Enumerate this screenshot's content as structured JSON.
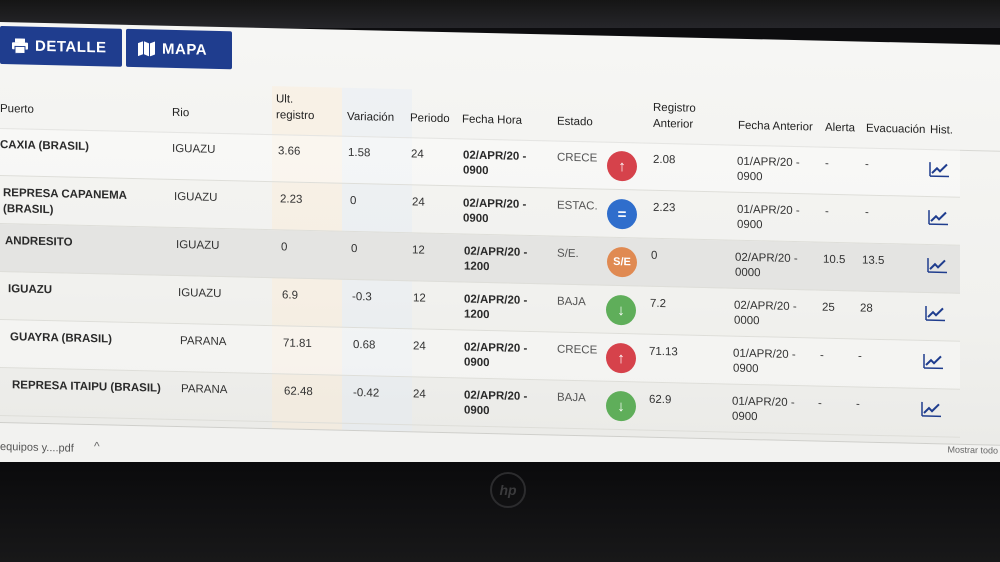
{
  "toolbar": {
    "detalle_label": "DETALLE",
    "mapa_label": "MAPA"
  },
  "columns": {
    "puerto": "Puerto",
    "rio": "Rio",
    "ult_registro_1": "Ult.",
    "ult_registro_2": "registro",
    "variacion": "Variación",
    "periodo": "Periodo",
    "fecha_hora": "Fecha Hora",
    "estado": "Estado",
    "registro_anterior_1": "Registro",
    "registro_anterior_2": "Anterior",
    "fecha_anterior": "Fecha Anterior",
    "alerta": "Alerta",
    "evacuacion": "Evacuación",
    "hist": "Hist."
  },
  "rows": [
    {
      "puerto_1": "CAXIA (BRASIL)",
      "puerto_2": "",
      "rio": "IGUAZU",
      "ult": "3.66",
      "variacion": "1.58",
      "periodo": "24",
      "fecha_1": "02/APR/20 -",
      "fecha_2": "0900",
      "estado": "CRECE",
      "estado_icon": "↑",
      "estado_icon_name": "arrow-up-icon",
      "registro_anterior": "2.08",
      "fecha_ant_1": "01/APR/20 -",
      "fecha_ant_2": "0900",
      "alerta": "-",
      "evacuacion": "-"
    },
    {
      "puerto_1": "REPRESA CAPANEMA",
      "puerto_2": "(BRASIL)",
      "rio": "IGUAZU",
      "ult": "2.23",
      "variacion": "0",
      "periodo": "24",
      "fecha_1": "02/APR/20 -",
      "fecha_2": "0900",
      "estado": "ESTAC.",
      "estado_icon": "=",
      "estado_icon_name": "equals-icon",
      "registro_anterior": "2.23",
      "fecha_ant_1": "01/APR/20 -",
      "fecha_ant_2": "0900",
      "alerta": "-",
      "evacuacion": "-"
    },
    {
      "puerto_1": "ANDRESITO",
      "puerto_2": "",
      "rio": "IGUAZU",
      "ult": "0",
      "variacion": "0",
      "periodo": "12",
      "fecha_1": "02/APR/20 -",
      "fecha_2": "1200",
      "estado": "S/E.",
      "estado_icon": "S/E",
      "estado_icon_name": "sin-estado-icon",
      "registro_anterior": "0",
      "fecha_ant_1": "02/APR/20 -",
      "fecha_ant_2": "0000",
      "alerta": "10.5",
      "evacuacion": "13.5"
    },
    {
      "puerto_1": "IGUAZU",
      "puerto_2": "",
      "rio": "IGUAZU",
      "ult": "6.9",
      "variacion": "-0.3",
      "periodo": "12",
      "fecha_1": "02/APR/20 -",
      "fecha_2": "1200",
      "estado": "BAJA",
      "estado_icon": "↓",
      "estado_icon_name": "arrow-down-icon",
      "registro_anterior": "7.2",
      "fecha_ant_1": "02/APR/20 -",
      "fecha_ant_2": "0000",
      "alerta": "25",
      "evacuacion": "28"
    },
    {
      "puerto_1": "GUAYRA (BRASIL)",
      "puerto_2": "",
      "rio": "PARANA",
      "ult": "71.81",
      "variacion": "0.68",
      "periodo": "24",
      "fecha_1": "02/APR/20 -",
      "fecha_2": "0900",
      "estado": "CRECE",
      "estado_icon": "↑",
      "estado_icon_name": "arrow-up-icon",
      "registro_anterior": "71.13",
      "fecha_ant_1": "01/APR/20 -",
      "fecha_ant_2": "0900",
      "alerta": "-",
      "evacuacion": "-"
    },
    {
      "puerto_1": "REPRESA ITAIPU (BRASIL)",
      "puerto_2": "",
      "rio": "PARANA",
      "ult": "62.48",
      "variacion": "-0.42",
      "periodo": "24",
      "fecha_1": "02/APR/20 -",
      "fecha_2": "0900",
      "estado": "BAJA",
      "estado_icon": "↓",
      "estado_icon_name": "arrow-down-icon",
      "registro_anterior": "62.9",
      "fecha_ant_1": "01/APR/20 -",
      "fecha_ant_2": "0900",
      "alerta": "-",
      "evacuacion": "-"
    }
  ],
  "footer": {
    "download_file": "equipos y....pdf",
    "chevron": "^",
    "show_all": "Mostrar todo"
  },
  "bezel": {
    "logo": "hp"
  },
  "colors": {
    "button_bg": "#1f3d8e",
    "crece": "#d6424b",
    "estac": "#2f6ecc",
    "sin_estado": "#e08a52",
    "baja": "#5fae5a",
    "hist_icon": "#1f3d8e"
  }
}
